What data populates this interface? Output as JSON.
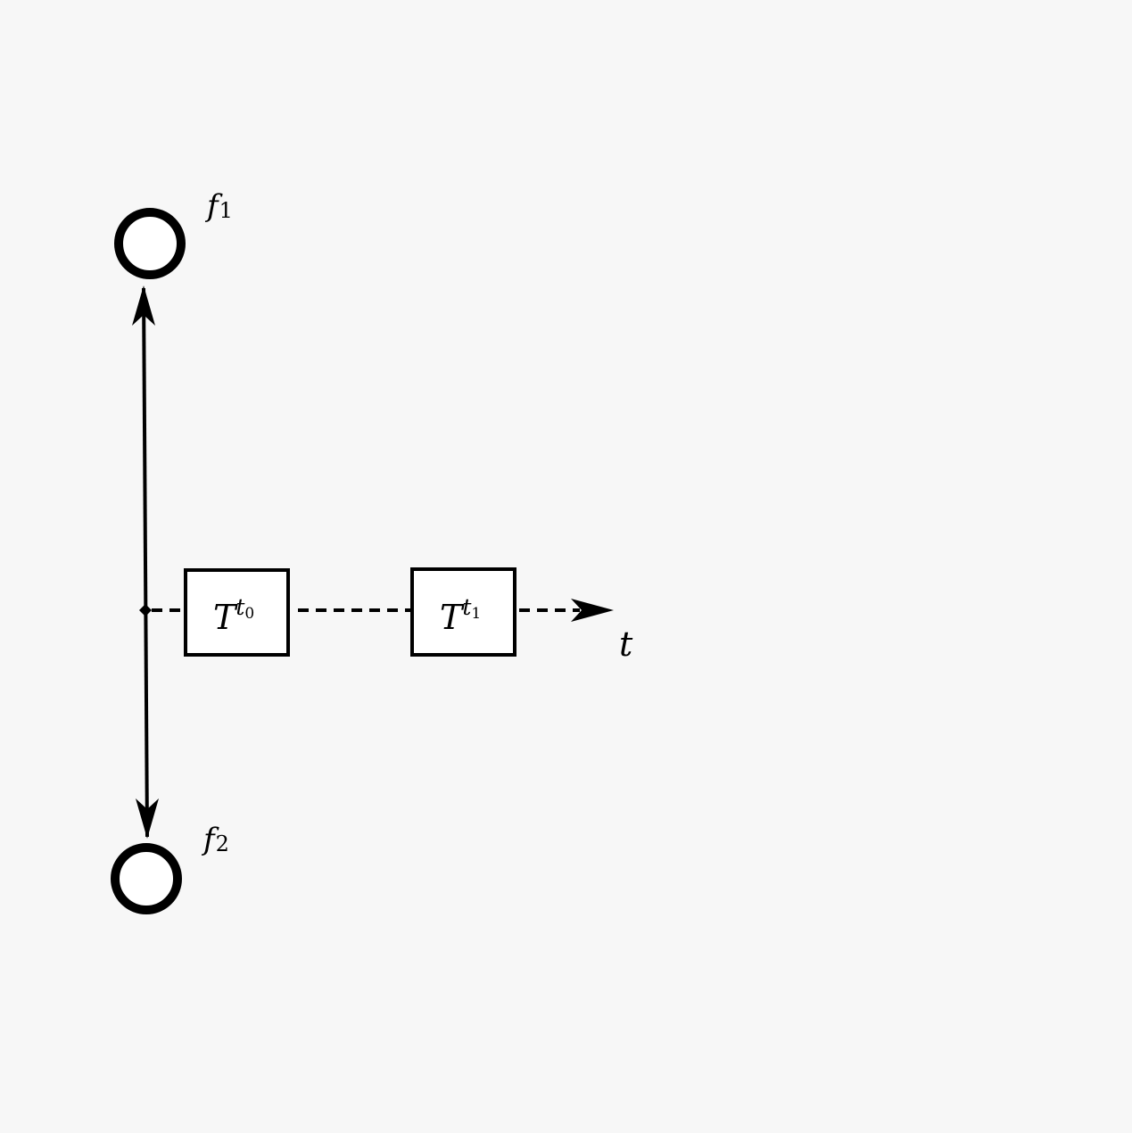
{
  "diagram": {
    "nodes": [
      {
        "id": "f1",
        "symbol": "f",
        "subscript": "1"
      },
      {
        "id": "f2",
        "symbol": "f",
        "subscript": "2"
      }
    ],
    "boxes": [
      {
        "id": "t0",
        "symbol": "T",
        "superscript": "t",
        "superscript_subscript": "0"
      },
      {
        "id": "t1",
        "symbol": "T",
        "superscript": "t",
        "superscript_subscript": "1"
      }
    ],
    "time_axis": {
      "label": "t"
    },
    "colors": {
      "background": "#f7f7f7",
      "stroke": "#000000",
      "fill": "#ffffff"
    }
  }
}
